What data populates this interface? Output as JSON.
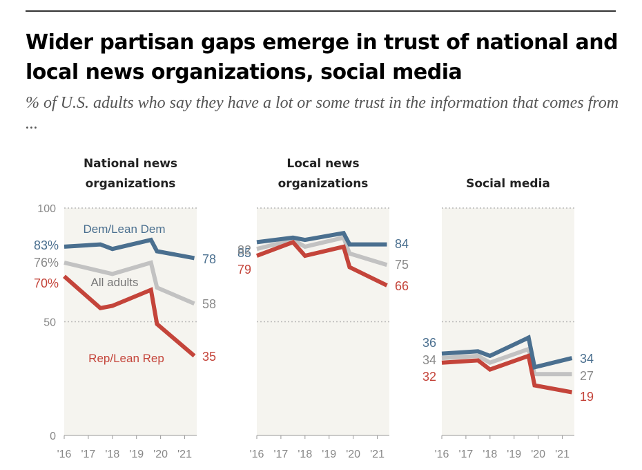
{
  "header": {
    "title": "Wider partisan gaps emerge in trust of national and local news organizations, social media",
    "subtitle": "% of U.S. adults who say they have a lot or some trust in the information that comes from ..."
  },
  "colors": {
    "dem": "#4a6f8f",
    "all": "#c2c2c2",
    "rep": "#c4443a",
    "panel_bg": "#f5f4ef",
    "grid": "#b8b8b8"
  },
  "chart_data": [
    {
      "type": "line",
      "title": "National news organizations",
      "x": [
        "'16",
        "'17",
        "'18",
        "'19",
        "'20",
        "'21"
      ],
      "ylim": [
        0,
        100
      ],
      "yticks": [
        "100",
        "50",
        "0"
      ],
      "grid": true,
      "series": [
        {
          "name": "Dem/Lean Dem",
          "key": "dem",
          "points": [
            [
              2016.0,
              83
            ],
            [
              2017.5,
              84
            ],
            [
              2018.0,
              82
            ],
            [
              2019.6,
              86
            ],
            [
              2019.85,
              81
            ],
            [
              2021.4,
              78
            ]
          ],
          "start_label": "83%",
          "end_label": "78"
        },
        {
          "name": "All adults",
          "key": "all",
          "points": [
            [
              2016.0,
              76
            ],
            [
              2018.0,
              71
            ],
            [
              2019.6,
              76
            ],
            [
              2019.85,
              65
            ],
            [
              2021.4,
              58
            ]
          ],
          "start_label": "76%",
          "end_label": "58"
        },
        {
          "name": "Rep/Lean Rep",
          "key": "rep",
          "points": [
            [
              2016.0,
              70
            ],
            [
              2017.5,
              56
            ],
            [
              2018.0,
              57
            ],
            [
              2019.6,
              64
            ],
            [
              2019.85,
              49
            ],
            [
              2021.4,
              35
            ]
          ],
          "start_label": "70%",
          "end_label": "35"
        }
      ]
    },
    {
      "type": "line",
      "title": "Local news organizations",
      "x": [
        "'16",
        "'17",
        "'18",
        "'19",
        "'20",
        "'21"
      ],
      "ylim": [
        0,
        100
      ],
      "grid": true,
      "series": [
        {
          "name": "Dem/Lean Dem",
          "key": "dem",
          "points": [
            [
              2016.0,
              85
            ],
            [
              2017.5,
              87
            ],
            [
              2018.0,
              86
            ],
            [
              2019.6,
              89
            ],
            [
              2019.85,
              84
            ],
            [
              2021.4,
              84
            ]
          ],
          "start_label": "85",
          "end_label": "84"
        },
        {
          "name": "All adults",
          "key": "all",
          "points": [
            [
              2016.0,
              82
            ],
            [
              2017.5,
              86
            ],
            [
              2018.0,
              83
            ],
            [
              2019.6,
              87
            ],
            [
              2019.85,
              80
            ],
            [
              2021.4,
              75
            ]
          ],
          "start_label": "82",
          "end_label": "75"
        },
        {
          "name": "Rep/Lean Rep",
          "key": "rep",
          "points": [
            [
              2016.0,
              79
            ],
            [
              2017.5,
              85
            ],
            [
              2018.0,
              79
            ],
            [
              2019.6,
              83
            ],
            [
              2019.85,
              74
            ],
            [
              2021.4,
              66
            ]
          ],
          "start_label": "79",
          "end_label": "66"
        }
      ]
    },
    {
      "type": "line",
      "title": "Social media",
      "x": [
        "'16",
        "'17",
        "'18",
        "'19",
        "'20",
        "'21"
      ],
      "ylim": [
        0,
        100
      ],
      "grid": true,
      "series": [
        {
          "name": "Dem/Lean Dem",
          "key": "dem",
          "points": [
            [
              2016.0,
              36
            ],
            [
              2017.5,
              37
            ],
            [
              2018.0,
              35
            ],
            [
              2019.6,
              43
            ],
            [
              2019.85,
              30
            ],
            [
              2021.4,
              34
            ]
          ],
          "start_label": "36",
          "end_label": "34"
        },
        {
          "name": "All adults",
          "key": "all",
          "points": [
            [
              2016.0,
              34
            ],
            [
              2017.5,
              35
            ],
            [
              2018.0,
              32
            ],
            [
              2019.6,
              38
            ],
            [
              2019.85,
              27
            ],
            [
              2021.4,
              27
            ]
          ],
          "start_label": "34",
          "end_label": "27"
        },
        {
          "name": "Rep/Lean Rep",
          "key": "rep",
          "points": [
            [
              2016.0,
              32
            ],
            [
              2017.5,
              33
            ],
            [
              2018.0,
              29
            ],
            [
              2019.6,
              35
            ],
            [
              2019.85,
              22
            ],
            [
              2021.4,
              19
            ]
          ],
          "start_label": "32",
          "end_label": "19"
        }
      ]
    }
  ]
}
